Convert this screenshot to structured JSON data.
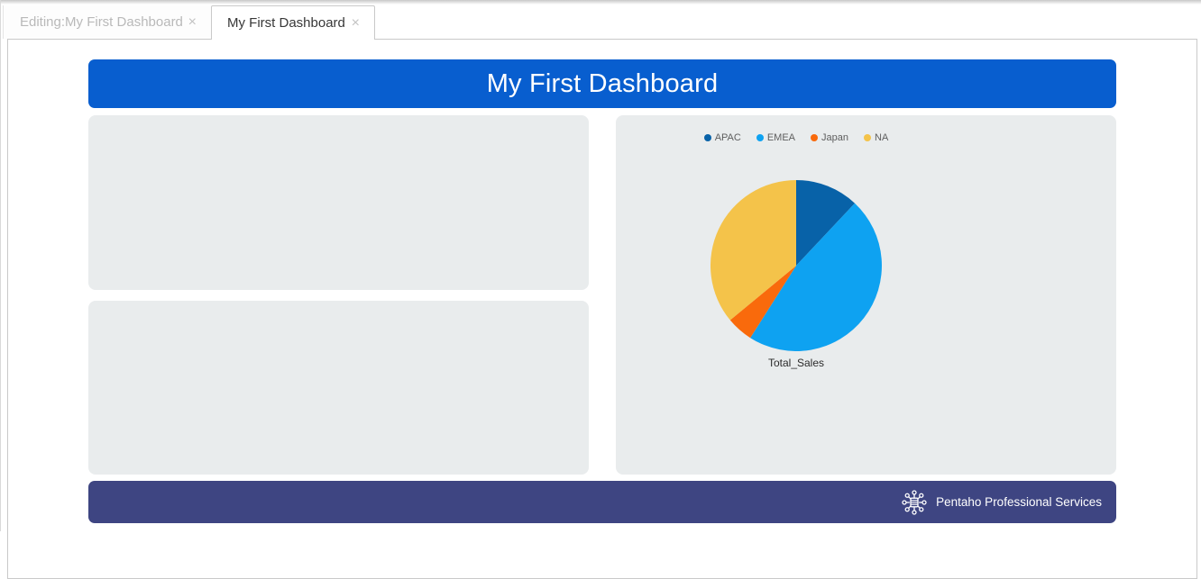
{
  "tabs": [
    {
      "label": "Editing:My First Dashboard",
      "close": "×",
      "active": false
    },
    {
      "label": "My First Dashboard",
      "close": "×",
      "active": true
    }
  ],
  "dashboard": {
    "title": "My First Dashboard",
    "footer": {
      "brand": "Pentaho Professional Services"
    }
  },
  "icons": {
    "close": "×",
    "footer_logo": "hub-network-icon"
  },
  "colors": {
    "banner_blue": "#085ecf",
    "footer_indigo": "#3e4582",
    "panel_gray": "#e9eced",
    "tab_border": "#c9c9c9"
  },
  "chart_data": {
    "type": "pie",
    "title": "Total_Sales",
    "label": "Total_Sales",
    "categories": [
      "APAC",
      "EMEA",
      "Japan",
      "NA"
    ],
    "values_pct": [
      12,
      47,
      5,
      36
    ],
    "colors": [
      "#0862a8",
      "#0ea2f1",
      "#f96a0c",
      "#f4c34a"
    ],
    "legend_position": "top",
    "start_angle_deg": 0,
    "direction": "clockwise"
  }
}
